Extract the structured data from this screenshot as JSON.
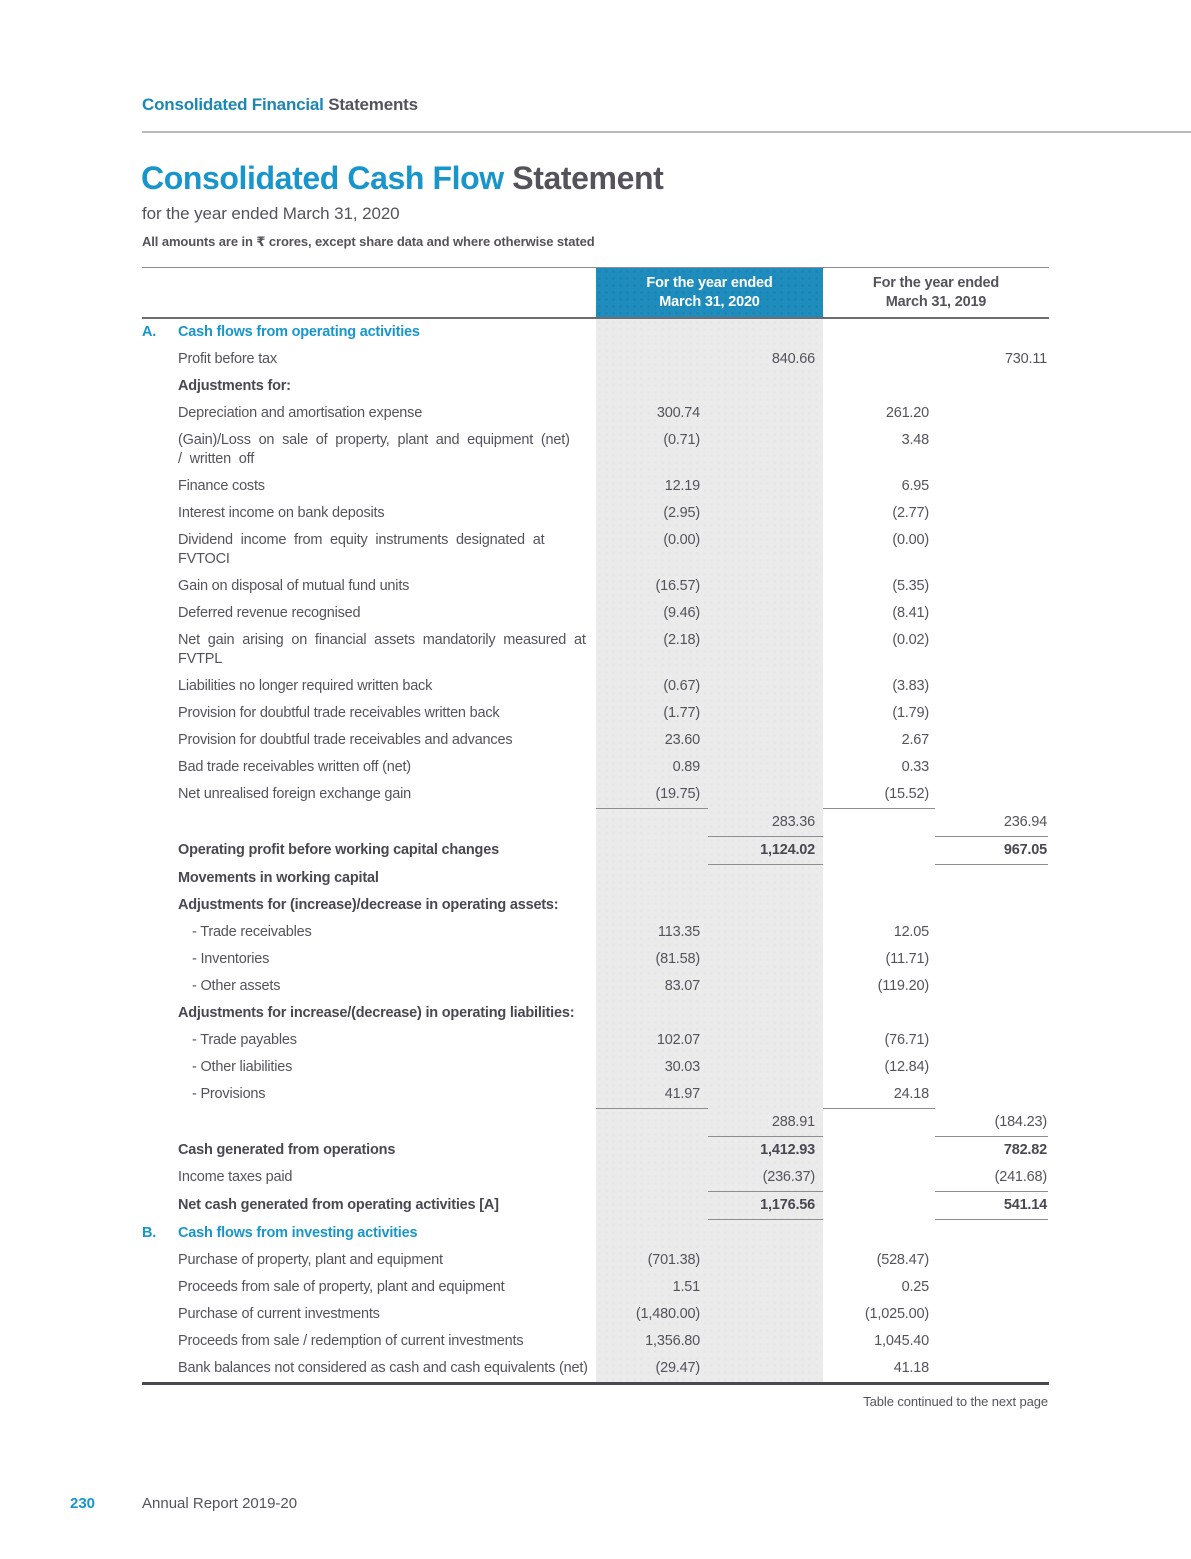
{
  "colors": {
    "accent": "#1896cc",
    "breadcrumb_blue": "#1d86b4",
    "box_blue": "#1e8dbe",
    "text": "#56525b",
    "text_bold": "#4a4751",
    "col_bg": "#ECEBEC",
    "rule_light": "#bab9bd",
    "rule_mid": "#8e8c91",
    "rule_dark": "#6f6c73",
    "rule_heavy": "#4a4751"
  },
  "header": {
    "breadcrumb_highlight": "Consolidated Financial",
    "breadcrumb_rest": " Statements",
    "title_highlight": "Consolidated Cash Flow",
    "title_rest": " Statement",
    "subtitle": "for the year ended March 31, 2020",
    "note": "All amounts are in ₹ crores, except share data and where otherwise stated"
  },
  "table": {
    "col_headers": {
      "y2020_line1": "For the year ended",
      "y2020_line2": "March 31, 2020",
      "y2019_line1": "For the year ended",
      "y2019_line2": "March 31, 2019"
    },
    "rows": [
      {
        "kind": "section",
        "index": "A.",
        "lines": [
          "Cash flows from operating activities"
        ]
      },
      {
        "kind": "item",
        "lines": [
          "Profit before tax"
        ],
        "b": "840.66",
        "d": "730.11"
      },
      {
        "kind": "item",
        "bold": true,
        "lines": [
          "Adjustments for:"
        ]
      },
      {
        "kind": "item",
        "lines": [
          "Depreciation and amortisation expense"
        ],
        "a": "300.74",
        "c": "261.20"
      },
      {
        "kind": "item",
        "justify": true,
        "lines": [
          "(Gain)/Loss on sale of property, plant and equipment (net)",
          "/ written off"
        ],
        "a": "(0.71)",
        "c": "3.48"
      },
      {
        "kind": "item",
        "lines": [
          "Finance costs"
        ],
        "a": "12.19",
        "c": "6.95"
      },
      {
        "kind": "item",
        "lines": [
          "Interest income on bank deposits"
        ],
        "a": "(2.95)",
        "c": "(2.77)"
      },
      {
        "kind": "item",
        "justify": true,
        "lines": [
          "Dividend income from equity instruments designated at",
          "FVTOCI"
        ],
        "a": "(0.00)",
        "c": "(0.00)"
      },
      {
        "kind": "item",
        "lines": [
          "Gain on disposal of  mutual fund units"
        ],
        "a": "(16.57)",
        "c": "(5.35)"
      },
      {
        "kind": "item",
        "lines": [
          "Deferred revenue recognised"
        ],
        "a": "(9.46)",
        "c": "(8.41)"
      },
      {
        "kind": "item",
        "justify": true,
        "lines": [
          "Net gain arising on financial assets mandatorily measured at",
          "FVTPL"
        ],
        "a": "(2.18)",
        "c": "(0.02)"
      },
      {
        "kind": "item",
        "lines": [
          "Liabilities no longer required written back"
        ],
        "a": "(0.67)",
        "c": "(3.83)"
      },
      {
        "kind": "item",
        "lines": [
          "Provision for doubtful trade receivables written back"
        ],
        "a": "(1.77)",
        "c": "(1.79)"
      },
      {
        "kind": "item",
        "lines": [
          "Provision for doubtful trade receivables and advances"
        ],
        "a": "23.60",
        "c": "2.67"
      },
      {
        "kind": "item",
        "lines": [
          "Bad trade receivables written off (net)"
        ],
        "a": "0.89",
        "c": "0.33"
      },
      {
        "kind": "item",
        "lines": [
          "Net unrealised foreign exchange gain"
        ],
        "a": "(19.75)",
        "c": "(15.52)",
        "underline": [
          "a",
          "c"
        ]
      },
      {
        "kind": "subtotal",
        "lines": [],
        "b": "283.36",
        "d": "236.94",
        "underline": [
          "b",
          "d"
        ]
      },
      {
        "kind": "item",
        "bold": true,
        "value_bold": true,
        "lines": [
          "Operating profit before working capital changes"
        ],
        "b": "1,124.02",
        "d": "967.05",
        "underline": [
          "b",
          "d"
        ]
      },
      {
        "kind": "item",
        "bold": true,
        "lines": [
          "Movements in working capital"
        ]
      },
      {
        "kind": "item",
        "bold": true,
        "lines": [
          "Adjustments for (increase)/decrease in operating assets:"
        ]
      },
      {
        "kind": "item",
        "indent": true,
        "lines": [
          "- Trade receivables"
        ],
        "a": "113.35",
        "c": "12.05"
      },
      {
        "kind": "item",
        "indent": true,
        "lines": [
          "- Inventories"
        ],
        "a": "(81.58)",
        "c": "(11.71)"
      },
      {
        "kind": "item",
        "indent": true,
        "lines": [
          "- Other assets"
        ],
        "a": "83.07",
        "c": "(119.20)"
      },
      {
        "kind": "item",
        "bold": true,
        "lines": [
          "Adjustments for increase/(decrease) in operating liabilities:"
        ]
      },
      {
        "kind": "item",
        "indent": true,
        "lines": [
          "- Trade payables"
        ],
        "a": "102.07",
        "c": "(76.71)"
      },
      {
        "kind": "item",
        "indent": true,
        "lines": [
          "- Other liabilities"
        ],
        "a": "30.03",
        "c": "(12.84)"
      },
      {
        "kind": "item",
        "indent": true,
        "lines": [
          "- Provisions"
        ],
        "a": "41.97",
        "c": "24.18",
        "underline": [
          "a",
          "c"
        ]
      },
      {
        "kind": "subtotal",
        "lines": [],
        "b": "288.91",
        "d": "(184.23)",
        "underline": [
          "b",
          "d"
        ]
      },
      {
        "kind": "item",
        "bold": true,
        "value_bold": true,
        "lines": [
          "Cash generated from operations"
        ],
        "b": "1,412.93",
        "d": "782.82"
      },
      {
        "kind": "item",
        "lines": [
          "Income taxes paid"
        ],
        "b": "(236.37)",
        "d": "(241.68)",
        "underline": [
          "b",
          "d"
        ]
      },
      {
        "kind": "item",
        "bold": true,
        "value_bold": true,
        "lines": [
          "Net cash generated from operating activities [A]"
        ],
        "b": "1,176.56",
        "d": "541.14",
        "underline": [
          "b",
          "d"
        ]
      },
      {
        "kind": "section",
        "index": "B.",
        "lines": [
          "Cash flows from investing activities"
        ]
      },
      {
        "kind": "item",
        "lines": [
          "Purchase of property, plant and equipment"
        ],
        "a": "(701.38)",
        "c": "(528.47)"
      },
      {
        "kind": "item",
        "lines": [
          "Proceeds from sale of property, plant and equipment"
        ],
        "a": "1.51",
        "c": "0.25"
      },
      {
        "kind": "item",
        "lines": [
          "Purchase of current investments"
        ],
        "a": "(1,480.00)",
        "c": "(1,025.00)"
      },
      {
        "kind": "item",
        "lines": [
          "Proceeds from sale / redemption of current investments"
        ],
        "a": "1,356.80",
        "c": "1,045.40"
      },
      {
        "kind": "item",
        "lines": [
          "Bank balances not considered as cash and cash equivalents (net)"
        ],
        "a": "(29.47)",
        "c": "41.18"
      }
    ]
  },
  "footer": {
    "continuation_note": "Table continued to the next page",
    "page_number": "230",
    "report_name": "Annual Report 2019-20"
  }
}
